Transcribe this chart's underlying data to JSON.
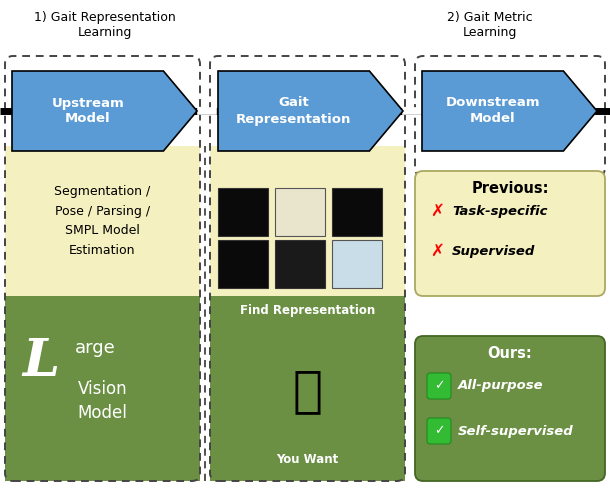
{
  "bg_color": "#ffffff",
  "blue_color": "#5b9bd5",
  "yellow_bg": "#f5f0c0",
  "green_bg": "#6b9044",
  "dashed_color": "#444444",
  "section1_title": "1) Gait Representation\nLearning",
  "section2_title": "2) Gait Metric\nLearning",
  "upstream_label": "Upstream\nModel",
  "gait_rep_label": "Gait\nRepresentation",
  "downstream_label": "Downstream\nModel",
  "seg_text": "Segmentation /\nPose / Parsing /\nSMPL Model\nEstimation",
  "find_rep_text": "Find Representation",
  "you_want_text": "You Want",
  "previous_title": "Previous:",
  "prev_item1": "Task-specific",
  "prev_item2": "Supervised",
  "ours_title": "Ours:",
  "ours_item1": "All-purpose",
  "ours_item2": "Self-supervised",
  "img_colors_row1": [
    "#111111",
    "#f0eed8",
    "#111111"
  ],
  "img_colors_row2": [
    "#111111",
    "#111111",
    "#d0e8f0"
  ]
}
